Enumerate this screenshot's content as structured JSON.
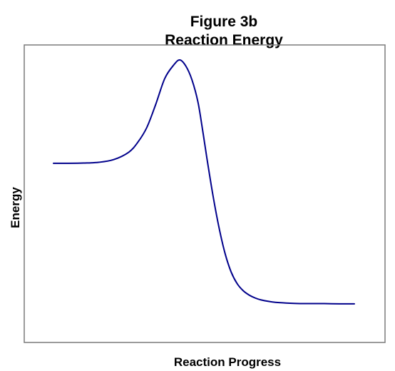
{
  "chart_data": {
    "type": "line",
    "title": "Figure 3b",
    "subtitle": "Reaction Energy",
    "xlabel": "Reaction Progress",
    "ylabel": "Energy",
    "xlim": [
      0,
      1
    ],
    "ylim": [
      0,
      1
    ],
    "grid": false,
    "legend": "none",
    "axis_ticks": false,
    "series": [
      {
        "color": "#00008b",
        "x": [
          0.0,
          0.05,
          0.1,
          0.15,
          0.2,
          0.25,
          0.28,
          0.31,
          0.34,
          0.37,
          0.4,
          0.42,
          0.44,
          0.46,
          0.48,
          0.495,
          0.51,
          0.53,
          0.55,
          0.57,
          0.59,
          0.61,
          0.63,
          0.65,
          0.67,
          0.69,
          0.72,
          0.75,
          0.8,
          0.85,
          0.9,
          0.95,
          1.0
        ],
        "y": [
          0.58,
          0.58,
          0.581,
          0.584,
          0.595,
          0.625,
          0.665,
          0.725,
          0.82,
          0.925,
          0.98,
          1.0,
          0.975,
          0.92,
          0.83,
          0.72,
          0.6,
          0.45,
          0.32,
          0.215,
          0.14,
          0.092,
          0.063,
          0.045,
          0.033,
          0.025,
          0.018,
          0.014,
          0.011,
          0.01,
          0.01,
          0.009,
          0.009
        ]
      }
    ]
  }
}
